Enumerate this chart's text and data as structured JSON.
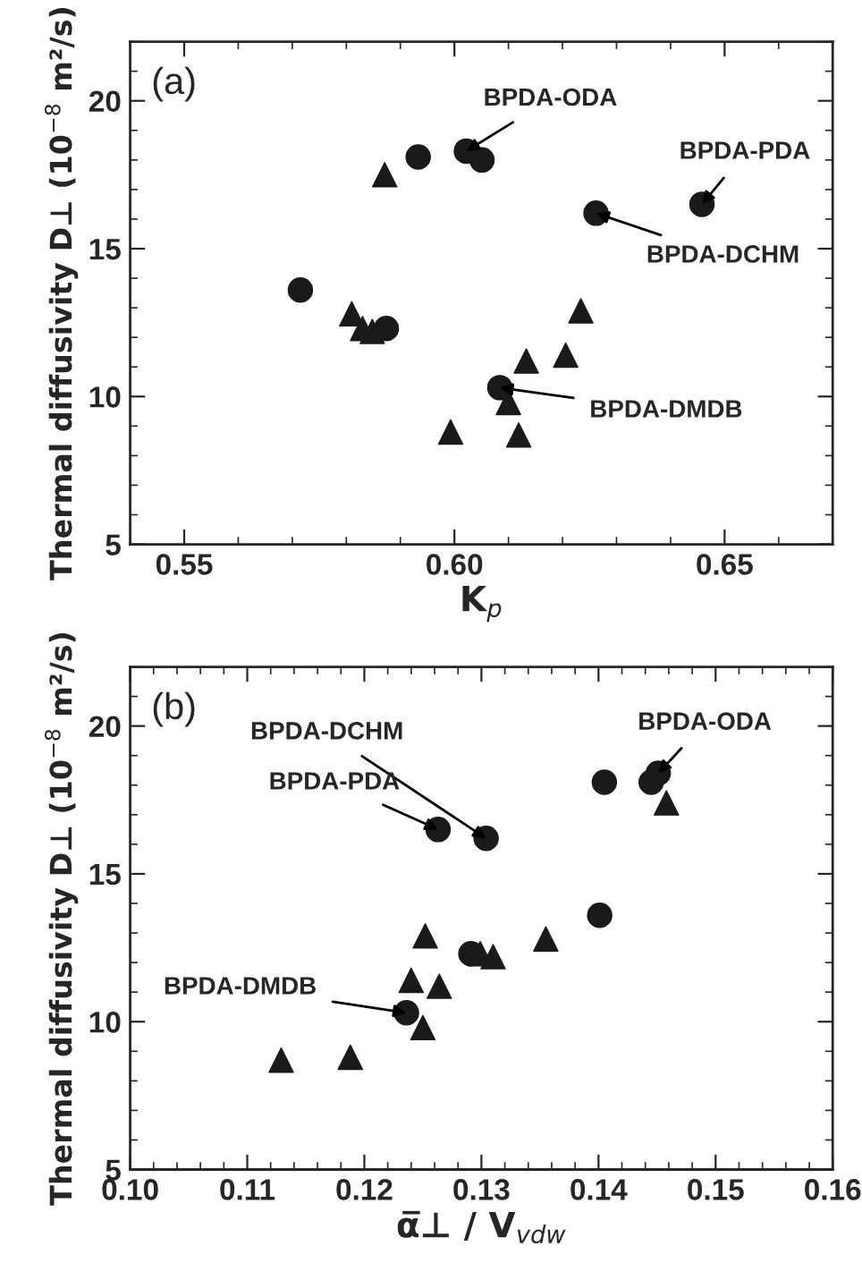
{
  "chart_data": [
    {
      "type": "scatter",
      "xlabel": "K$_{p}$",
      "ylabel": "Thermal diffusivity D⊥ (10$^{−8}$ m²/s)",
      "xlim": [
        0.54,
        0.67
      ],
      "xticks": [
        {
          "value": 0.55,
          "label": "0.55"
        },
        {
          "value": 0.6,
          "label": "0.60"
        },
        {
          "value": 0.65,
          "label": "0.65"
        }
      ],
      "ylim": [
        5,
        22
      ],
      "yticks": [
        5,
        10,
        15,
        20
      ],
      "grid": false,
      "series": [
        {
          "color": "#1a1a1a",
          "marker": "circle",
          "x": [
            0.5715,
            0.5874,
            0.5933,
            0.6022,
            0.6051,
            0.6262,
            0.6458,
            0.6084
          ],
          "values": [
            13.6,
            12.3,
            18.1,
            18.3,
            18.0,
            16.2,
            16.5,
            10.3
          ]
        },
        {
          "color": "#1a1a1a",
          "marker": "triangle",
          "x": [
            0.5871,
            0.581,
            0.583,
            0.5848,
            0.6133,
            0.6206,
            0.6234,
            0.61,
            0.5993,
            0.6119
          ],
          "values": [
            17.5,
            12.8,
            12.3,
            12.2,
            11.2,
            11.4,
            12.9,
            9.8,
            8.8,
            8.7
          ]
        }
      ],
      "annotations": [
        "(a)",
        {
          "text": "BPDA-ODA",
          "x": 0.6022,
          "y": 18.3
        },
        {
          "text": "BPDA-PDA",
          "x": 0.6458,
          "y": 16.5
        },
        {
          "text": "BPDA-DCHM",
          "x": 0.6262,
          "y": 16.2
        },
        {
          "text": "BPDA-DMDB",
          "x": 0.6084,
          "y": 10.3
        }
      ]
    },
    {
      "type": "scatter",
      "xlabel": "α̅⊥ / V$_{vdw}$",
      "ylabel": "Thermal diffusivity D⊥ (10$^{−8}$ m²/s)",
      "xlim": [
        0.1,
        0.16
      ],
      "xticks": [
        {
          "value": 0.1,
          "label": "0.10"
        },
        {
          "value": 0.11,
          "label": "0.11"
        },
        {
          "value": 0.12,
          "label": "0.12"
        },
        {
          "value": 0.13,
          "label": "0.13"
        },
        {
          "value": 0.14,
          "label": "0.14"
        },
        {
          "value": 0.15,
          "label": "0.15"
        },
        {
          "value": 0.16,
          "label": "0.16"
        }
      ],
      "ylim": [
        5,
        22
      ],
      "yticks": [
        5,
        10,
        15,
        20
      ],
      "grid": false,
      "series": [
        {
          "color": "#1a1a1a",
          "marker": "circle",
          "x": [
            0.1263,
            0.1304,
            0.1405,
            0.1445,
            0.1451,
            0.1401,
            0.1291,
            0.1236
          ],
          "values": [
            16.5,
            16.2,
            18.1,
            18.1,
            18.4,
            13.6,
            12.3,
            10.3
          ]
        },
        {
          "color": "#1a1a1a",
          "marker": "triangle",
          "x": [
            0.1458,
            0.1252,
            0.124,
            0.1264,
            0.1299,
            0.131,
            0.1355,
            0.125,
            0.1188,
            0.1129
          ],
          "values": [
            17.4,
            12.9,
            11.4,
            11.2,
            12.3,
            12.2,
            12.8,
            9.8,
            8.8,
            8.7
          ]
        }
      ],
      "annotations": [
        "(b)",
        {
          "text": "BPDA-DCHM",
          "x": 0.1304,
          "y": 16.2
        },
        {
          "text": "BPDA-PDA",
          "x": 0.1263,
          "y": 16.5
        },
        {
          "text": "BPDA-ODA",
          "x": 0.1451,
          "y": 18.4
        },
        {
          "text": "BPDA-DMDB",
          "x": 0.1236,
          "y": 10.3
        }
      ]
    }
  ]
}
